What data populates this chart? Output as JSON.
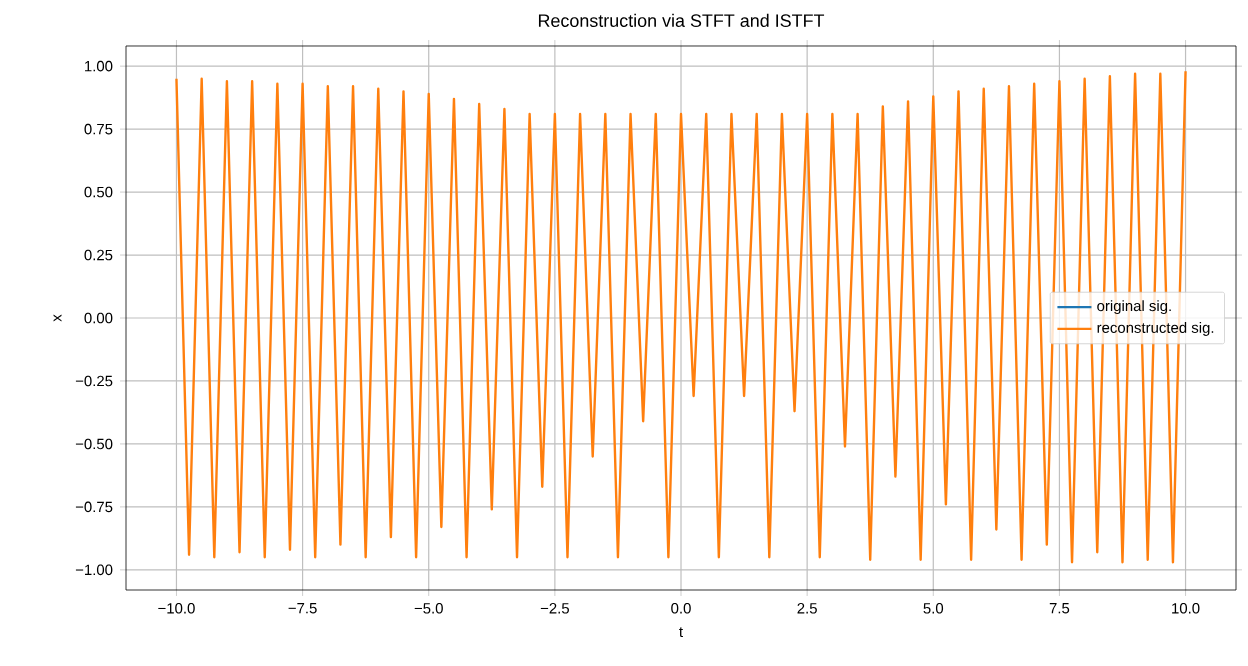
{
  "chart_data": {
    "type": "line",
    "title": "Reconstruction via STFT and ISTFT",
    "xlabel": "t",
    "ylabel": "x",
    "x": [
      -10,
      -9.75,
      -9.5,
      -9.25,
      -9,
      -8.75,
      -8.5,
      -8.25,
      -8,
      -7.75,
      -7.5,
      -7.25,
      -7,
      -6.75,
      -6.5,
      -6.25,
      -6,
      -5.75,
      -5.5,
      -5.25,
      -5,
      -4.75,
      -4.5,
      -4.25,
      -4,
      -3.75,
      -3.5,
      -3.25,
      -3,
      -2.75,
      -2.5,
      -2.25,
      -2,
      -1.75,
      -1.5,
      -1.25,
      -1,
      -0.75,
      -0.5,
      -0.25,
      0,
      0.25,
      0.5,
      0.75,
      1,
      1.25,
      1.5,
      1.75,
      2,
      2.25,
      2.5,
      2.75,
      3,
      3.25,
      3.5,
      3.75,
      4,
      4.25,
      4.5,
      4.75,
      5,
      5.25,
      5.5,
      5.75,
      6,
      6.25,
      6.5,
      6.75,
      7,
      7.25,
      7.5,
      7.75,
      8,
      8.25,
      8.5,
      8.75,
      9,
      9.25,
      9.5,
      9.75,
      10
    ],
    "series": [
      {
        "name": "original sig.",
        "color": "#1f77b4",
        "values": [
          null,
          null,
          null,
          null,
          null,
          null,
          null,
          null,
          null,
          null,
          null,
          null,
          null,
          null,
          null,
          null,
          null,
          null,
          null,
          null,
          null,
          null,
          null,
          null,
          null,
          null,
          null,
          null,
          null,
          null,
          null,
          null,
          null,
          null,
          null,
          null,
          null,
          null,
          null,
          null,
          null,
          null,
          null,
          null,
          null,
          null,
          null,
          null,
          null,
          null,
          null,
          null,
          null,
          null,
          null,
          null,
          null,
          null,
          null,
          null,
          null,
          null,
          null,
          null,
          null,
          null,
          null,
          null,
          null,
          null,
          null,
          null,
          null,
          null,
          null,
          null,
          null,
          null,
          null,
          null,
          null
        ]
      },
      {
        "name": "reconstructed sig.",
        "color": "#ff7f0e",
        "values": [
          0.95,
          -0.94,
          0.95,
          -0.95,
          0.94,
          -0.93,
          0.94,
          -0.95,
          0.93,
          -0.92,
          0.93,
          -0.95,
          0.92,
          -0.9,
          0.92,
          -0.95,
          0.91,
          -0.87,
          0.9,
          -0.95,
          0.89,
          -0.83,
          0.87,
          -0.95,
          0.85,
          -0.76,
          0.83,
          -0.95,
          0.81,
          -0.67,
          0.81,
          -0.95,
          0.81,
          -0.55,
          0.81,
          -0.95,
          0.81,
          -0.41,
          0.81,
          -0.95,
          0.81,
          -0.31,
          0.81,
          -0.95,
          0.81,
          -0.31,
          0.81,
          -0.95,
          0.81,
          -0.37,
          0.81,
          -0.95,
          0.81,
          -0.51,
          0.81,
          -0.96,
          0.84,
          -0.63,
          0.86,
          -0.96,
          0.88,
          -0.74,
          0.9,
          -0.96,
          0.91,
          -0.84,
          0.92,
          -0.96,
          0.93,
          -0.9,
          0.94,
          -0.97,
          0.95,
          -0.93,
          0.96,
          -0.97,
          0.97,
          -0.96,
          0.97,
          -0.97,
          0.98
        ]
      }
    ],
    "xlim": [
      -11,
      11
    ],
    "xticks": [
      {
        "value": -10,
        "label": "−10.0"
      },
      {
        "value": -7.5,
        "label": "−7.5"
      },
      {
        "value": -5,
        "label": "−5.0"
      },
      {
        "value": -2.5,
        "label": "−2.5"
      },
      {
        "value": 0,
        "label": "0.0"
      },
      {
        "value": 2.5,
        "label": "2.5"
      },
      {
        "value": 5,
        "label": "5.0"
      },
      {
        "value": 7.5,
        "label": "7.5"
      },
      {
        "value": 10,
        "label": "10.0"
      }
    ],
    "ylim": [
      -1.08,
      1.08
    ],
    "yticks": [
      {
        "value": -1,
        "label": "−1.00"
      },
      {
        "value": -0.75,
        "label": "−0.75"
      },
      {
        "value": -0.5,
        "label": "−0.50"
      },
      {
        "value": -0.25,
        "label": "−0.25"
      },
      {
        "value": 0,
        "label": "0.00"
      },
      {
        "value": 0.25,
        "label": "0.25"
      },
      {
        "value": 0.5,
        "label": "0.50"
      },
      {
        "value": 0.75,
        "label": "0.75"
      },
      {
        "value": 1,
        "label": "1.00"
      }
    ],
    "grid": true,
    "legend": "right",
    "marker": "none",
    "line_style": "solid"
  }
}
